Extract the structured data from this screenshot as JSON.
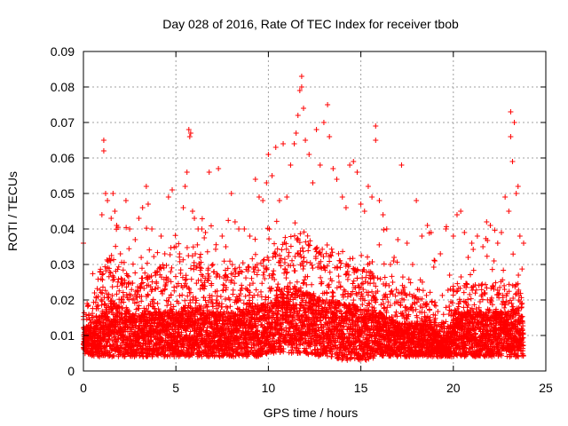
{
  "chart_data": {
    "type": "scatter",
    "title": "Day 028 of 2016, Rate Of TEC Index for receiver tbob",
    "xlabel": "GPS time / hours",
    "ylabel": "ROTI / TECUs",
    "xlim": [
      0,
      25
    ],
    "ylim": [
      0,
      0.09
    ],
    "xticks": [
      0,
      5,
      10,
      15,
      20,
      25
    ],
    "yticks": [
      0,
      0.01,
      0.02,
      0.03,
      0.04,
      0.05,
      0.06,
      0.07,
      0.08,
      0.09
    ],
    "xtick_labels": [
      "0",
      "5",
      "10",
      "15",
      "20",
      "25"
    ],
    "ytick_labels": [
      "0",
      "0.01",
      "0.02",
      "0.03",
      "0.04",
      "0.05",
      "0.06",
      "0.07",
      "0.08",
      "0.09"
    ],
    "grid": true,
    "marker": "plus",
    "color": "#ff0000",
    "series": [
      {
        "values": [
          [
            0.0,
            0.036
          ],
          [
            0.1,
            0.012
          ],
          [
            0.2,
            0.019
          ],
          [
            0.3,
            0.015
          ],
          [
            0.4,
            0.009
          ],
          [
            0.6,
            0.022
          ],
          [
            0.8,
            0.021
          ],
          [
            0.9,
            0.028
          ],
          [
            1.0,
            0.044
          ],
          [
            1.1,
            0.065
          ],
          [
            1.1,
            0.062
          ],
          [
            1.2,
            0.05
          ],
          [
            1.3,
            0.048
          ],
          [
            1.5,
            0.043
          ],
          [
            1.6,
            0.05
          ],
          [
            1.7,
            0.045
          ],
          [
            1.8,
            0.041
          ],
          [
            2.0,
            0.033
          ],
          [
            2.3,
            0.048
          ],
          [
            2.5,
            0.04
          ],
          [
            2.8,
            0.037
          ],
          [
            3.0,
            0.043
          ],
          [
            3.2,
            0.046
          ],
          [
            3.4,
            0.052
          ],
          [
            3.5,
            0.047
          ],
          [
            3.7,
            0.04
          ],
          [
            4.0,
            0.028
          ],
          [
            4.2,
            0.038
          ],
          [
            4.4,
            0.033
          ],
          [
            4.6,
            0.049
          ],
          [
            4.8,
            0.051
          ],
          [
            5.0,
            0.035
          ],
          [
            5.2,
            0.033
          ],
          [
            5.4,
            0.046
          ],
          [
            5.5,
            0.052
          ],
          [
            5.6,
            0.056
          ],
          [
            5.7,
            0.068
          ],
          [
            5.75,
            0.066
          ],
          [
            5.8,
            0.067
          ],
          [
            5.9,
            0.045
          ],
          [
            6.0,
            0.043
          ],
          [
            6.2,
            0.04
          ],
          [
            6.4,
            0.04
          ],
          [
            6.6,
            0.039
          ],
          [
            6.8,
            0.056
          ],
          [
            7.0,
            0.03
          ],
          [
            7.3,
            0.057
          ],
          [
            7.5,
            0.038
          ],
          [
            7.7,
            0.035
          ],
          [
            8.0,
            0.05
          ],
          [
            8.2,
            0.042
          ],
          [
            8.4,
            0.04
          ],
          [
            8.7,
            0.04
          ],
          [
            9.0,
            0.038
          ],
          [
            9.3,
            0.054
          ],
          [
            9.5,
            0.049
          ],
          [
            9.7,
            0.048
          ],
          [
            9.9,
            0.053
          ],
          [
            10.0,
            0.061
          ],
          [
            10.2,
            0.055
          ],
          [
            10.4,
            0.063
          ],
          [
            10.6,
            0.048
          ],
          [
            10.8,
            0.064
          ],
          [
            11.0,
            0.049
          ],
          [
            11.2,
            0.058
          ],
          [
            11.4,
            0.064
          ],
          [
            11.5,
            0.067
          ],
          [
            11.6,
            0.072
          ],
          [
            11.7,
            0.079
          ],
          [
            11.8,
            0.083
          ],
          [
            11.8,
            0.08
          ],
          [
            11.9,
            0.074
          ],
          [
            12.0,
            0.065
          ],
          [
            12.2,
            0.061
          ],
          [
            12.4,
            0.053
          ],
          [
            12.6,
            0.068
          ],
          [
            12.8,
            0.058
          ],
          [
            13.0,
            0.07
          ],
          [
            13.2,
            0.075
          ],
          [
            13.3,
            0.066
          ],
          [
            13.5,
            0.057
          ],
          [
            13.7,
            0.054
          ],
          [
            14.0,
            0.049
          ],
          [
            14.2,
            0.046
          ],
          [
            14.4,
            0.058
          ],
          [
            14.6,
            0.059
          ],
          [
            14.8,
            0.056
          ],
          [
            15.0,
            0.047
          ],
          [
            15.2,
            0.045
          ],
          [
            15.4,
            0.052
          ],
          [
            15.6,
            0.049
          ],
          [
            15.8,
            0.069
          ],
          [
            15.8,
            0.065
          ],
          [
            16.0,
            0.048
          ],
          [
            16.2,
            0.044
          ],
          [
            16.4,
            0.04
          ],
          [
            16.6,
            0.03
          ],
          [
            16.8,
            0.032
          ],
          [
            17.0,
            0.037
          ],
          [
            17.2,
            0.058
          ],
          [
            17.5,
            0.036
          ],
          [
            17.8,
            0.03
          ],
          [
            18.0,
            0.048
          ],
          [
            18.3,
            0.038
          ],
          [
            18.6,
            0.041
          ],
          [
            18.8,
            0.039
          ],
          [
            19.0,
            0.031
          ],
          [
            19.3,
            0.033
          ],
          [
            19.6,
            0.04
          ],
          [
            19.8,
            0.027
          ],
          [
            20.0,
            0.038
          ],
          [
            20.2,
            0.044
          ],
          [
            20.4,
            0.045
          ],
          [
            20.6,
            0.039
          ],
          [
            20.8,
            0.032
          ],
          [
            21.0,
            0.036
          ],
          [
            21.3,
            0.038
          ],
          [
            21.6,
            0.035
          ],
          [
            21.8,
            0.042
          ],
          [
            22.0,
            0.041
          ],
          [
            22.2,
            0.031
          ],
          [
            22.4,
            0.036
          ],
          [
            22.6,
            0.039
          ],
          [
            22.8,
            0.049
          ],
          [
            23.0,
            0.045
          ],
          [
            23.1,
            0.073
          ],
          [
            23.1,
            0.066
          ],
          [
            23.2,
            0.059
          ],
          [
            23.3,
            0.07
          ],
          [
            23.4,
            0.05
          ],
          [
            23.5,
            0.052
          ],
          [
            23.6,
            0.038
          ],
          [
            23.8,
            0.036
          ]
        ]
      }
    ],
    "bulk_envelope": {
      "description": "Dense cloud of points between these envelope values (ROTI) at each hour",
      "x": [
        0,
        0.5,
        1,
        1.5,
        2,
        2.5,
        3,
        3.5,
        4,
        4.5,
        5,
        5.5,
        6,
        6.5,
        7,
        7.5,
        8,
        8.5,
        9,
        9.5,
        10,
        10.5,
        11,
        11.5,
        12,
        12.5,
        13,
        13.5,
        14,
        14.5,
        15,
        15.5,
        16,
        16.5,
        17,
        17.5,
        18,
        18.5,
        19,
        19.5,
        20,
        20.5,
        21,
        21.5,
        22,
        22.5,
        23,
        23.5,
        23.8
      ],
      "low": [
        0.005,
        0.004,
        0.004,
        0.004,
        0.004,
        0.004,
        0.004,
        0.004,
        0.004,
        0.004,
        0.004,
        0.004,
        0.004,
        0.004,
        0.004,
        0.004,
        0.004,
        0.004,
        0.004,
        0.004,
        0.005,
        0.005,
        0.005,
        0.005,
        0.005,
        0.004,
        0.004,
        0.004,
        0.003,
        0.003,
        0.003,
        0.003,
        0.004,
        0.004,
        0.004,
        0.004,
        0.004,
        0.004,
        0.004,
        0.004,
        0.004,
        0.004,
        0.004,
        0.004,
        0.004,
        0.004,
        0.004,
        0.004,
        0.004
      ],
      "high": [
        0.019,
        0.018,
        0.028,
        0.032,
        0.03,
        0.026,
        0.024,
        0.026,
        0.028,
        0.028,
        0.028,
        0.032,
        0.03,
        0.028,
        0.028,
        0.026,
        0.027,
        0.028,
        0.029,
        0.03,
        0.032,
        0.034,
        0.036,
        0.04,
        0.036,
        0.034,
        0.032,
        0.032,
        0.03,
        0.029,
        0.028,
        0.027,
        0.026,
        0.024,
        0.022,
        0.022,
        0.02,
        0.02,
        0.019,
        0.012,
        0.022,
        0.024,
        0.024,
        0.024,
        0.024,
        0.024,
        0.024,
        0.026,
        0.02
      ],
      "density_mid": [
        0.01,
        0.009,
        0.012,
        0.014,
        0.013,
        0.012,
        0.011,
        0.012,
        0.012,
        0.012,
        0.012,
        0.013,
        0.013,
        0.012,
        0.012,
        0.012,
        0.012,
        0.012,
        0.013,
        0.013,
        0.014,
        0.015,
        0.016,
        0.017,
        0.016,
        0.015,
        0.014,
        0.014,
        0.013,
        0.013,
        0.012,
        0.012,
        0.012,
        0.011,
        0.01,
        0.01,
        0.01,
        0.01,
        0.009,
        0.007,
        0.011,
        0.012,
        0.012,
        0.012,
        0.012,
        0.012,
        0.012,
        0.013,
        0.01
      ]
    }
  }
}
